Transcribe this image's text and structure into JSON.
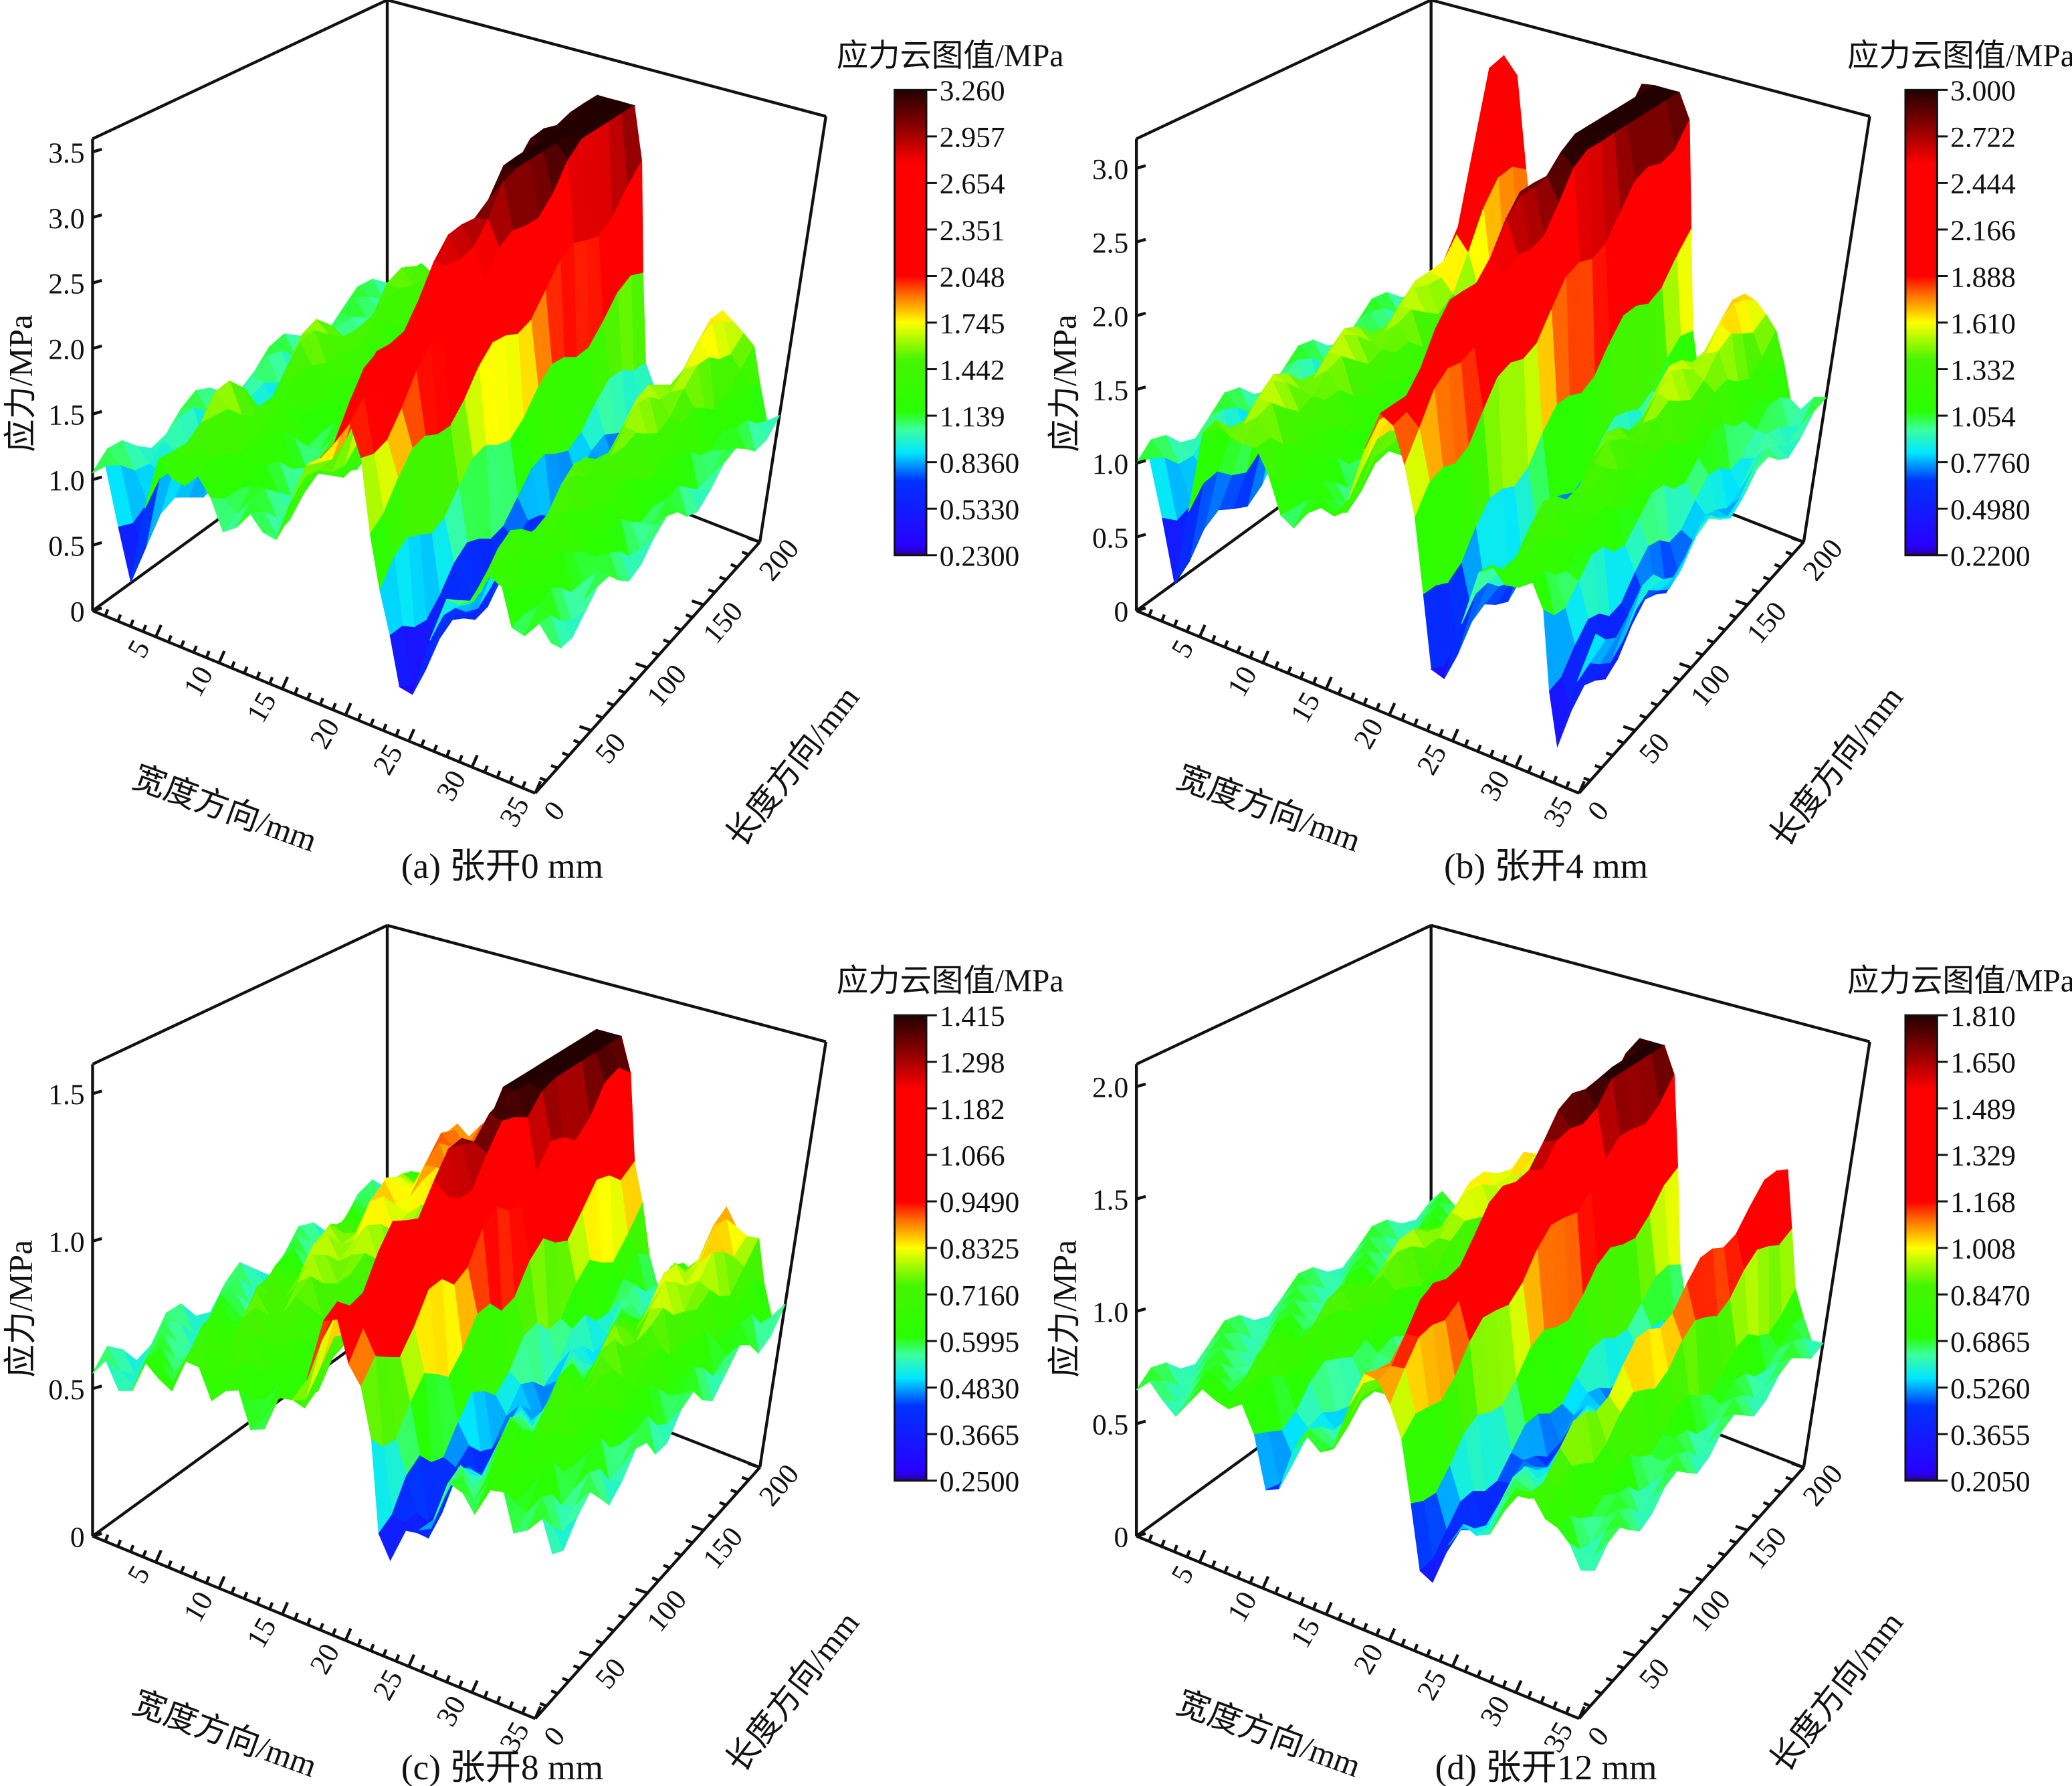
{
  "chart_data": [
    {
      "type": "surface",
      "title": "(a) 张开0 mm",
      "zlabel": "应力/MPa",
      "xlabel": "宽度方向/mm",
      "ylabel": "长度方向/mm",
      "xlim": [
        0,
        35
      ],
      "ylim": [
        0,
        200
      ],
      "zlim": [
        0,
        3.6
      ],
      "xticks": [
        "5",
        "10",
        "15",
        "20",
        "25",
        "30",
        "35"
      ],
      "yticks": [
        "0",
        "50",
        "100",
        "150",
        "200"
      ],
      "zticks": [
        "0",
        "0.5",
        "1.0",
        "1.5",
        "2.0",
        "2.5",
        "3.0",
        "3.5"
      ],
      "colorbar": {
        "title": "应力云图值/MPa",
        "range": [
          0.23,
          3.26
        ],
        "ticks": [
          "3.260",
          "2.957",
          "2.654",
          "2.351",
          "2.048",
          "1.745",
          "1.442",
          "1.139",
          "0.8360",
          "0.5330",
          "0.2300"
        ]
      },
      "peak_stress": 3.26
    },
    {
      "type": "surface",
      "title": "(b) 张开4 mm",
      "zlabel": "应力/MPa",
      "xlabel": "宽度方向/mm",
      "ylabel": "长度方向/mm",
      "xlim": [
        0,
        35
      ],
      "ylim": [
        0,
        200
      ],
      "zlim": [
        0,
        3.2
      ],
      "xticks": [
        "5",
        "10",
        "15",
        "20",
        "25",
        "30",
        "35"
      ],
      "yticks": [
        "0",
        "50",
        "100",
        "150",
        "200"
      ],
      "zticks": [
        "0",
        "0.5",
        "1.0",
        "1.5",
        "2.0",
        "2.5",
        "3.0"
      ],
      "colorbar": {
        "title": "应力云图值/MPa",
        "range": [
          0.22,
          3.0
        ],
        "ticks": [
          "3.000",
          "2.722",
          "2.444",
          "2.166",
          "1.888",
          "1.610",
          "1.332",
          "1.054",
          "0.7760",
          "0.4980",
          "0.2200"
        ]
      },
      "peak_stress": 3.0
    },
    {
      "type": "surface",
      "title": "(c) 张开8 mm",
      "zlabel": "应力/MPa",
      "xlabel": "宽度方向/mm",
      "ylabel": "长度方向/mm",
      "xlim": [
        0,
        35
      ],
      "ylim": [
        0,
        200
      ],
      "zlim": [
        0,
        1.6
      ],
      "xticks": [
        "5",
        "10",
        "15",
        "20",
        "25",
        "30",
        "35"
      ],
      "yticks": [
        "0",
        "50",
        "100",
        "150",
        "200"
      ],
      "zticks": [
        "0",
        "0.5",
        "1.0",
        "1.5"
      ],
      "colorbar": {
        "title": "应力云图值/MPa",
        "range": [
          0.25,
          1.415
        ],
        "ticks": [
          "1.415",
          "1.298",
          "1.182",
          "1.066",
          "0.9490",
          "0.8325",
          "0.7160",
          "0.5995",
          "0.4830",
          "0.3665",
          "0.2500"
        ]
      },
      "peak_stress": 1.415
    },
    {
      "type": "surface",
      "title": "(d) 张开12 mm",
      "zlabel": "应力/MPa",
      "xlabel": "宽度方向/mm",
      "ylabel": "长度方向/mm",
      "xlim": [
        0,
        35
      ],
      "ylim": [
        0,
        200
      ],
      "zlim": [
        0,
        2.1
      ],
      "xticks": [
        "5",
        "10",
        "15",
        "20",
        "25",
        "30",
        "35"
      ],
      "yticks": [
        "0",
        "50",
        "100",
        "150",
        "200"
      ],
      "zticks": [
        "0",
        "0.5",
        "1.0",
        "1.5",
        "2.0"
      ],
      "colorbar": {
        "title": "应力云图值/MPa",
        "range": [
          0.205,
          1.81
        ],
        "ticks": [
          "1.810",
          "1.650",
          "1.489",
          "1.329",
          "1.168",
          "1.008",
          "0.8470",
          "0.6865",
          "0.5260",
          "0.3655",
          "0.2050"
        ]
      },
      "peak_stress": 1.81
    }
  ]
}
